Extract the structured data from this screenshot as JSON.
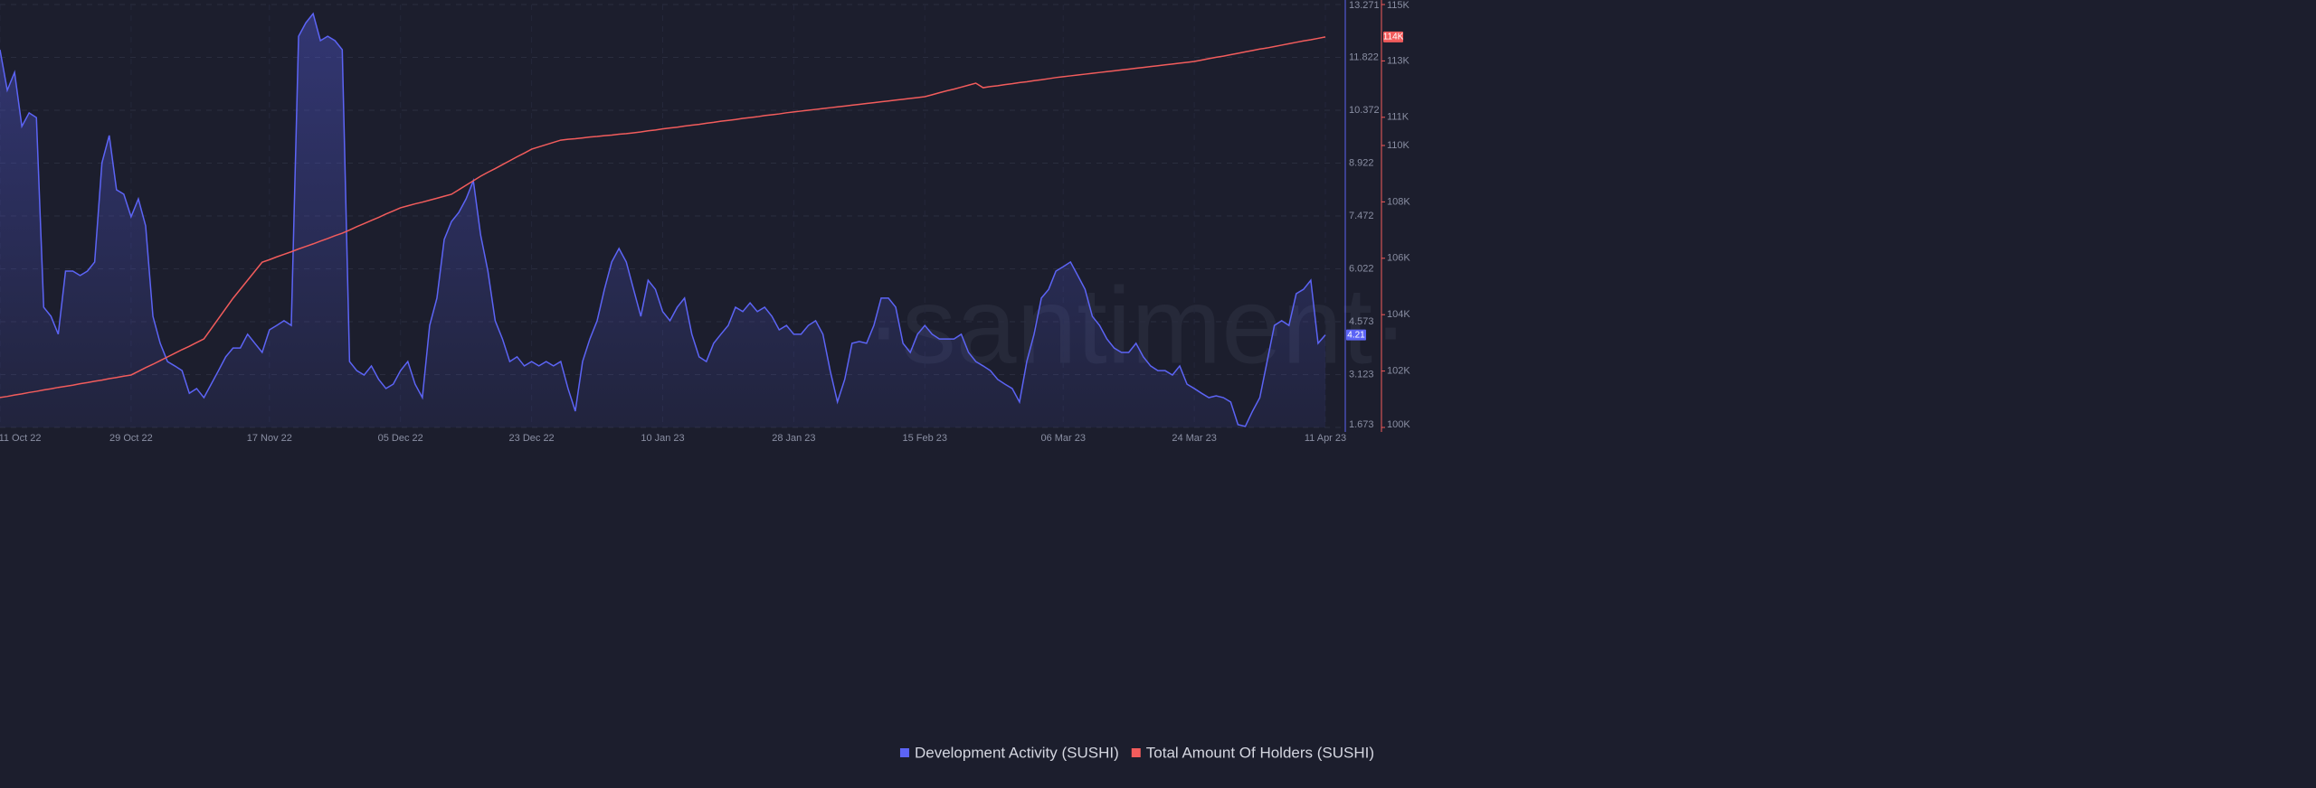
{
  "chart_data": {
    "type": "line",
    "watermark": "·santiment·",
    "categories": [
      "11 Oct 22",
      null,
      null,
      null,
      null,
      null,
      null,
      null,
      null,
      null,
      null,
      null,
      null,
      null,
      null,
      null,
      null,
      null,
      "29 Oct 22",
      null,
      null,
      null,
      null,
      null,
      null,
      null,
      null,
      null,
      null,
      null,
      null,
      null,
      null,
      null,
      null,
      null,
      null,
      "17 Nov 22",
      null,
      null,
      null,
      null,
      null,
      null,
      null,
      null,
      null,
      null,
      null,
      null,
      null,
      null,
      null,
      null,
      null,
      "05 Dec 22",
      null,
      null,
      null,
      null,
      null,
      null,
      null,
      null,
      null,
      null,
      null,
      null,
      null,
      null,
      null,
      null,
      null,
      "23 Dec 22",
      null,
      null,
      null,
      null,
      null,
      null,
      null,
      null,
      null,
      null,
      null,
      null,
      null,
      null,
      null,
      null,
      null,
      "10 Jan 23",
      null,
      null,
      null,
      null,
      null,
      null,
      null,
      null,
      null,
      null,
      null,
      null,
      null,
      null,
      null,
      null,
      null,
      "28 Jan 23",
      null,
      null,
      null,
      null,
      null,
      null,
      null,
      null,
      null,
      null,
      null,
      null,
      null,
      null,
      null,
      null,
      null,
      "15 Feb 23",
      null,
      null,
      null,
      null,
      null,
      null,
      null,
      null,
      null,
      null,
      null,
      null,
      null,
      null,
      null,
      null,
      null,
      null,
      "06 Mar 23",
      null,
      null,
      null,
      null,
      null,
      null,
      null,
      null,
      null,
      null,
      null,
      null,
      null,
      null,
      null,
      null,
      null,
      "24 Mar 23",
      null,
      null,
      null,
      null,
      null,
      null,
      null,
      null,
      null,
      null,
      null,
      null,
      null,
      null,
      null,
      null,
      null,
      "11 Apr 23"
    ],
    "series": [
      {
        "name": "Development Activity (SUSHI)",
        "color": "#5c64f5",
        "values": [
          12.03,
          10.92,
          11.41,
          9.93,
          10.3,
          10.17,
          4.97,
          4.72,
          4.23,
          5.96,
          5.96,
          5.84,
          5.96,
          6.21,
          8.93,
          9.68,
          8.19,
          8.07,
          7.45,
          7.94,
          7.2,
          4.72,
          3.98,
          3.48,
          3.36,
          3.23,
          2.61,
          2.74,
          2.49,
          2.86,
          3.23,
          3.61,
          3.85,
          3.85,
          4.23,
          3.98,
          3.73,
          4.35,
          4.47,
          4.6,
          4.47,
          12.4,
          12.77,
          13.02,
          12.28,
          12.4,
          12.28,
          12.03,
          3.48,
          3.23,
          3.11,
          3.36,
          2.99,
          2.74,
          2.86,
          3.23,
          3.48,
          2.86,
          2.49,
          4.47,
          5.22,
          6.83,
          7.32,
          7.57,
          7.94,
          8.44,
          6.95,
          5.96,
          4.6,
          4.1,
          3.48,
          3.61,
          3.36,
          3.48,
          3.36,
          3.48,
          3.36,
          3.48,
          2.74,
          2.12,
          3.48,
          4.1,
          4.6,
          5.46,
          6.21,
          6.58,
          6.21,
          5.46,
          4.72,
          5.71,
          5.46,
          4.85,
          4.6,
          4.97,
          5.22,
          4.23,
          3.61,
          3.48,
          3.98,
          4.23,
          4.47,
          4.97,
          4.85,
          5.09,
          4.85,
          4.97,
          4.72,
          4.35,
          4.47,
          4.23,
          4.23,
          4.47,
          4.6,
          4.23,
          3.23,
          2.37,
          2.99,
          3.98,
          4.03,
          3.98,
          4.47,
          5.22,
          5.22,
          4.97,
          3.98,
          3.73,
          4.23,
          4.47,
          4.23,
          4.1,
          4.1,
          4.1,
          4.23,
          3.73,
          3.48,
          3.36,
          3.23,
          2.99,
          2.86,
          2.74,
          2.37,
          3.48,
          4.23,
          5.22,
          5.46,
          5.96,
          6.08,
          6.21,
          5.84,
          5.46,
          4.72,
          4.47,
          4.1,
          3.85,
          3.73,
          3.73,
          3.98,
          3.61,
          3.36,
          3.23,
          3.23,
          3.11,
          3.36,
          2.86,
          2.74,
          2.61,
          2.49,
          2.54,
          2.49,
          2.37,
          1.75,
          1.7,
          2.12,
          2.49,
          3.48,
          4.47,
          4.6,
          4.47,
          5.34,
          5.46,
          5.71,
          3.98,
          4.21
        ]
      },
      {
        "name": "Total Amount Of Holders (SUSHI)",
        "color": "#f25c5c",
        "axis": "y2",
        "last_label": "114K",
        "values": [
          101060,
          101100,
          101150,
          101190,
          101240,
          101280,
          101330,
          101370,
          101420,
          101460,
          101500,
          101550,
          101590,
          101640,
          101680,
          101730,
          101770,
          101820,
          101860,
          101990,
          102120,
          102240,
          102370,
          102500,
          102630,
          102760,
          102880,
          103010,
          103140,
          103500,
          103860,
          104220,
          104580,
          104900,
          105220,
          105540,
          105860,
          105950,
          106050,
          106140,
          106230,
          106330,
          106420,
          106510,
          106610,
          106700,
          106800,
          106890,
          107000,
          107120,
          107230,
          107340,
          107450,
          107570,
          107680,
          107790,
          107860,
          107930,
          107990,
          108060,
          108130,
          108200,
          108270,
          108430,
          108590,
          108750,
          108910,
          109050,
          109180,
          109320,
          109460,
          109600,
          109730,
          109870,
          109950,
          110030,
          110110,
          110190,
          110220,
          110240,
          110270,
          110300,
          110320,
          110350,
          110370,
          110400,
          110420,
          110450,
          110480,
          110520,
          110550,
          110590,
          110620,
          110650,
          110690,
          110720,
          110750,
          110790,
          110820,
          110860,
          110890,
          110920,
          110960,
          110990,
          111020,
          111060,
          111090,
          111120,
          111160,
          111190,
          111220,
          111250,
          111280,
          111310,
          111340,
          111370,
          111400,
          111430,
          111460,
          111490,
          111520,
          111550,
          111580,
          111610,
          111640,
          111670,
          111700,
          111730,
          111800,
          111870,
          111940,
          112000,
          112070,
          112140,
          112210,
          112050,
          112090,
          112120,
          112160,
          112190,
          112230,
          112260,
          112300,
          112330,
          112370,
          112410,
          112440,
          112470,
          112500,
          112530,
          112560,
          112590,
          112620,
          112650,
          112680,
          112710,
          112740,
          112770,
          112800,
          112830,
          112860,
          112890,
          112920,
          112950,
          112980,
          113030,
          113080,
          113130,
          113170,
          113220,
          113270,
          113320,
          113370,
          113420,
          113460,
          113510,
          113560,
          113610,
          113660,
          113710,
          113750,
          113800,
          113850
        ]
      }
    ],
    "ylim": [
      1.673,
      13.271
    ],
    "yticks": [
      1.673,
      3.123,
      4.573,
      6.022,
      7.472,
      8.922,
      10.372,
      11.822,
      13.271
    ],
    "y2lim": [
      100000,
      115000
    ],
    "y2ticks": [
      {
        "value": 100000,
        "label": "100K"
      },
      {
        "value": 102000,
        "label": "102K"
      },
      {
        "value": 104000,
        "label": "104K"
      },
      {
        "value": 106000,
        "label": "106K"
      },
      {
        "value": 108000,
        "label": "108K"
      },
      {
        "value": 110000,
        "label": "110K"
      },
      {
        "value": 111000,
        "label": "111K"
      },
      {
        "value": 113000,
        "label": "113K"
      },
      {
        "value": 115000,
        "label": "115K"
      }
    ],
    "grid": true,
    "legend": "bottom"
  }
}
